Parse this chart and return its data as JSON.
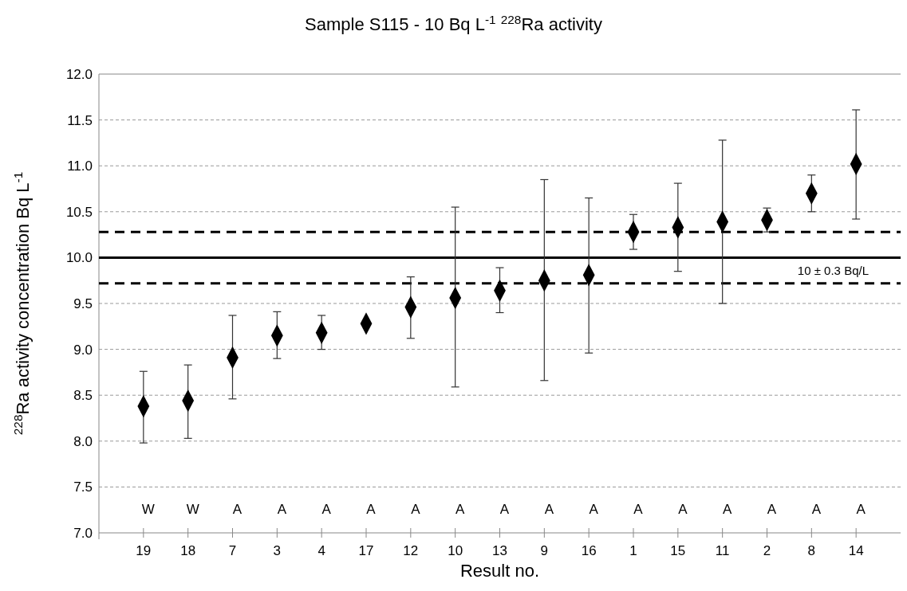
{
  "chart_data": {
    "type": "scatter",
    "title": "Sample S115 - 10 Bq L$^{-1}$ $^{228}$Ra activity",
    "xlabel": "Result no.",
    "ylabel": "$^{228}$Ra activity concentration Bq L$^{-1}$",
    "categories": [
      "19",
      "18",
      "7",
      "3",
      "4",
      "17",
      "12",
      "10",
      "13",
      "9",
      "16",
      "1",
      "15",
      "11",
      "2",
      "8",
      "14"
    ],
    "series": [
      {
        "color": "#000000",
        "values": [
          8.38,
          8.44,
          8.91,
          9.15,
          9.18,
          9.28,
          9.46,
          9.56,
          9.64,
          9.75,
          9.81,
          10.28,
          10.33,
          10.39,
          10.41,
          10.7,
          11.02
        ],
        "errors": [
          [
            7.98,
            8.76
          ],
          [
            8.03,
            8.83
          ],
          [
            8.46,
            9.37
          ],
          [
            8.9,
            9.41
          ],
          [
            9.0,
            9.37
          ],
          null,
          [
            9.12,
            9.79
          ],
          [
            8.59,
            10.55
          ],
          [
            9.4,
            9.89
          ],
          [
            8.66,
            10.85
          ],
          [
            8.96,
            10.65
          ],
          [
            10.09,
            10.47
          ],
          [
            9.85,
            10.81
          ],
          [
            9.5,
            11.28
          ],
          [
            10.28,
            10.54
          ],
          [
            10.5,
            10.9
          ],
          [
            10.42,
            11.61
          ]
        ]
      }
    ],
    "ylim": [
      7.0,
      12.0
    ],
    "yticks": [
      {
        "value": 7,
        "label": "7.0"
      },
      {
        "value": 7.5,
        "label": "7.5"
      },
      {
        "value": 8,
        "label": "8.0"
      },
      {
        "value": 8.5,
        "label": "8.5"
      },
      {
        "value": 9,
        "label": "9.0"
      },
      {
        "value": 9.5,
        "label": "9.5"
      },
      {
        "value": 10,
        "label": "10.0"
      },
      {
        "value": 10.5,
        "label": "10.5"
      },
      {
        "value": 11,
        "label": "11.0"
      },
      {
        "value": 11.5,
        "label": "11.5"
      },
      {
        "value": 12,
        "label": "12.0"
      }
    ],
    "grid": "y",
    "marker": "diamond",
    "ref_lines": [
      {
        "axis": "y",
        "value": 10,
        "label": "10 ± 0.3 Bq/L",
        "color": "#000000",
        "line_style": "solid"
      },
      {
        "axis": "y",
        "value": 10.28,
        "color": "#000000",
        "line_style": "dashed"
      },
      {
        "axis": "y",
        "value": 9.72,
        "color": "#000000",
        "line_style": "dashed"
      }
    ],
    "annotations": [
      "W",
      "W",
      "A",
      "A",
      "A",
      "A",
      "A",
      "A",
      "A",
      "A",
      "A",
      "A",
      "A",
      "A",
      "A",
      "A",
      "A"
    ]
  }
}
